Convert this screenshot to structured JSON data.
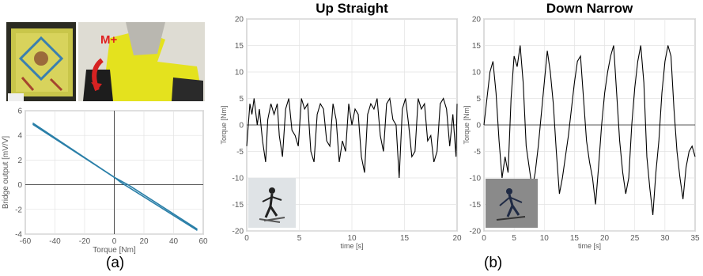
{
  "panel_labels": {
    "a": "(a)",
    "b": "(b)"
  },
  "photos": {
    "sensor": {
      "description_icon": "sensor-photo"
    },
    "boot": {
      "moment_label": "M+"
    },
    "skier_up": {
      "description_icon": "skier-photo"
    },
    "skier_down": {
      "description_icon": "skier-photo"
    }
  },
  "chart_data": [
    {
      "id": "calibration",
      "type": "line",
      "title": "",
      "xlabel": "Torque [Nm]",
      "ylabel": "Bridge output [mV/V]",
      "xlim": [
        -60,
        60
      ],
      "ylim": [
        -4,
        6
      ],
      "xticks": [
        -60,
        -40,
        -20,
        0,
        20,
        40,
        60
      ],
      "yticks": [
        -4,
        -2,
        0,
        2,
        4,
        6
      ],
      "grid": true,
      "series": [
        {
          "x": [
            -55,
            0,
            10,
            56
          ],
          "y": [
            5.0,
            0.6,
            -0.05,
            -3.6
          ]
        },
        {
          "x": [
            -55,
            0,
            5,
            56
          ],
          "y": [
            4.9,
            0.6,
            0.15,
            -3.7
          ]
        }
      ],
      "color": "#2a7fa8"
    },
    {
      "id": "up-straight",
      "type": "line",
      "title": "Up Straight",
      "xlabel": "time [s]",
      "ylabel": "Torque [Nm]",
      "xlim": [
        0,
        20
      ],
      "ylim": [
        -20,
        20
      ],
      "xticks": [
        0,
        5,
        10,
        15,
        20
      ],
      "yticks": [
        -20,
        -15,
        -10,
        -5,
        0,
        5,
        10,
        15,
        20
      ],
      "grid": true,
      "x": [
        0,
        0.3,
        0.5,
        0.7,
        1.0,
        1.2,
        1.5,
        1.8,
        2.0,
        2.3,
        2.6,
        2.9,
        3.1,
        3.4,
        3.7,
        4.0,
        4.3,
        4.6,
        4.9,
        5.2,
        5.5,
        5.8,
        6.1,
        6.4,
        6.7,
        7.0,
        7.3,
        7.6,
        7.9,
        8.2,
        8.5,
        8.8,
        9.1,
        9.4,
        9.7,
        10.0,
        10.3,
        10.6,
        10.9,
        11.2,
        11.5,
        11.8,
        12.1,
        12.4,
        12.7,
        13.0,
        13.3,
        13.6,
        13.9,
        14.2,
        14.5,
        14.8,
        15.1,
        15.4,
        15.7,
        16.0,
        16.3,
        16.6,
        16.9,
        17.2,
        17.5,
        17.8,
        18.1,
        18.4,
        18.7,
        19.0,
        19.3,
        19.6,
        19.9,
        20.0
      ],
      "y": [
        -4,
        4,
        2,
        5,
        0,
        3,
        -3,
        -7,
        1,
        4,
        2,
        4,
        -2,
        -6,
        3,
        5,
        -1,
        -2,
        -4,
        5,
        3,
        4,
        -5,
        -7,
        2,
        4,
        3,
        -3,
        -4,
        4,
        1,
        -7,
        -3,
        -5,
        4,
        0,
        3,
        2,
        -6,
        -9,
        2,
        4,
        3,
        5,
        -2,
        -5,
        4,
        5,
        1,
        0,
        -10,
        3,
        5,
        0,
        -6,
        -5,
        5,
        3,
        4,
        -3,
        -2,
        -7,
        -5,
        4,
        5,
        3,
        -4,
        2,
        -6,
        4
      ],
      "color": "#000000"
    },
    {
      "id": "down-narrow",
      "type": "line",
      "title": "Down Narrow",
      "xlabel": "time [s]",
      "ylabel": "Torque [Nm]",
      "xlim": [
        0,
        35
      ],
      "ylim": [
        -20,
        20
      ],
      "xticks": [
        0,
        5,
        10,
        15,
        20,
        25,
        30,
        35
      ],
      "yticks": [
        -20,
        -15,
        -10,
        -5,
        0,
        5,
        10,
        15,
        20
      ],
      "grid": true,
      "x": [
        0,
        0.5,
        1,
        1.5,
        2,
        2.5,
        3,
        3.5,
        4,
        4.5,
        5,
        5.5,
        6,
        6.5,
        7,
        7.5,
        8,
        8.5,
        9,
        9.5,
        10,
        10.5,
        11,
        11.5,
        12,
        12.5,
        13,
        13.5,
        14,
        14.5,
        15,
        15.5,
        16,
        16.5,
        17,
        17.5,
        18,
        18.5,
        19,
        19.5,
        20,
        20.5,
        21,
        21.5,
        22,
        22.5,
        23,
        23.5,
        24,
        24.5,
        25,
        25.5,
        26,
        26.5,
        27,
        27.5,
        28,
        28.5,
        29,
        29.5,
        30,
        30.5,
        31,
        31.5,
        32,
        32.5,
        33,
        33.5,
        34,
        34.5,
        35
      ],
      "y": [
        0,
        5,
        10,
        12,
        6,
        -3,
        -10,
        -6,
        -9,
        5,
        13,
        11,
        15,
        8,
        -4,
        -8,
        -12,
        -9,
        -4,
        2,
        8,
        14,
        10,
        4,
        -5,
        -13,
        -10,
        -6,
        -2,
        3,
        8,
        12,
        13,
        5,
        -3,
        -7,
        -10,
        -15,
        -8,
        0,
        6,
        10,
        13,
        15,
        6,
        -3,
        -9,
        -13,
        -10,
        0,
        7,
        12,
        15,
        8,
        -6,
        -12,
        -17,
        -9,
        -3,
        6,
        12,
        15,
        13,
        3,
        -5,
        -10,
        -14,
        -8,
        -5,
        -4,
        -6
      ],
      "color": "#000000"
    }
  ]
}
